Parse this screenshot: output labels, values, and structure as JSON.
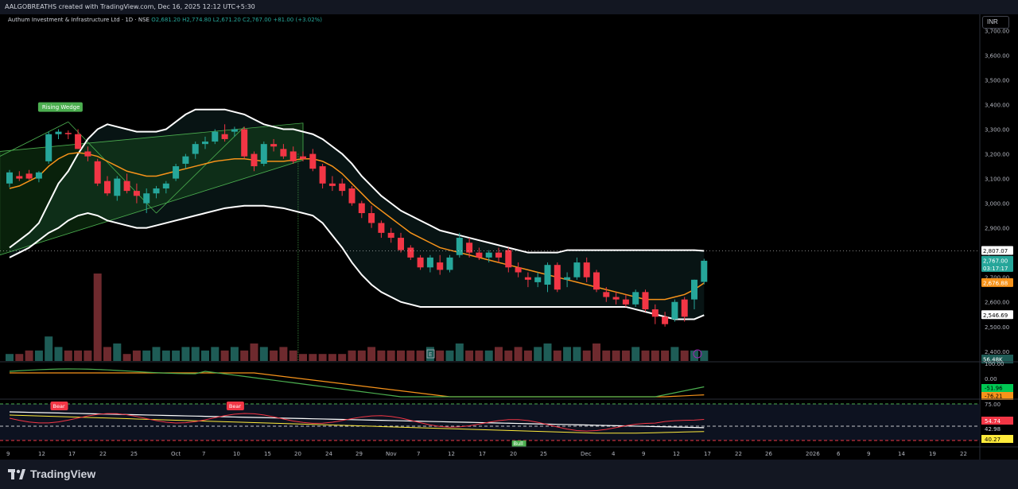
{
  "header": {
    "credit": "AALGOBREATHS created with TradingView.com, Dec 16, 2025 12:12 UTC+5:30",
    "symbol": "Authum Investment & Infrastructure Ltd · 1D · NSE",
    "ohlc": "O2,681.20 H2,774.80 L2,671.20 C2,767.00 +81.00 (+3.02%)",
    "currency": "INR"
  },
  "footer": {
    "brand": "TradingView"
  },
  "colors": {
    "bg": "#000000",
    "up": "#26a69a",
    "down": "#f23645",
    "band": "#ffffff",
    "mid": "#f7931a",
    "wedge": "#4caf50",
    "volUp": "#1e5c56",
    "volDown": "#6e2a2e"
  },
  "chart_data": [
    {
      "type": "candlestick",
      "title": "Authum Investment & Infrastructure Ltd · 1D · NSE",
      "ylim": [
        2380,
        3740
      ],
      "y_ticks": [
        "3,700.00",
        "3,600.00",
        "3,500.00",
        "3,400.00",
        "3,300.00",
        "3,200.00",
        "3,100.00",
        "3,000.00",
        "2,900.00",
        "2,800.00",
        "2,700.00",
        "2,600.00",
        "2,500.00",
        "2,400.00"
      ],
      "x_ticks": [
        "9",
        "12",
        "17",
        "22",
        "25",
        "Oct",
        "7",
        "10",
        "15",
        "20",
        "24",
        "29",
        "Nov",
        "7",
        "12",
        "17",
        "20",
        "25",
        "Dec",
        "4",
        "9",
        "12",
        "17",
        "22",
        "26",
        "2026",
        "6",
        "9",
        "14",
        "19",
        "22"
      ],
      "candles": [
        [
          3080,
          3135,
          3065,
          3125
        ],
        [
          3110,
          3130,
          3090,
          3100
        ],
        [
          3120,
          3135,
          3095,
          3100
        ],
        [
          3100,
          3130,
          3085,
          3125
        ],
        [
          3170,
          3290,
          3160,
          3280
        ],
        [
          3280,
          3300,
          3260,
          3290
        ],
        [
          3285,
          3295,
          3260,
          3280
        ],
        [
          3280,
          3300,
          3220,
          3220
        ],
        [
          3210,
          3230,
          3170,
          3190
        ],
        [
          3170,
          3180,
          3070,
          3080
        ],
        [
          3090,
          3110,
          3030,
          3040
        ],
        [
          3030,
          3110,
          3010,
          3100
        ],
        [
          3090,
          3120,
          3040,
          3050
        ],
        [
          3050,
          3080,
          3000,
          3030
        ],
        [
          3000,
          3060,
          2960,
          3040
        ],
        [
          3040,
          3070,
          3020,
          3060
        ],
        [
          3060,
          3090,
          3040,
          3080
        ],
        [
          3100,
          3160,
          3090,
          3150
        ],
        [
          3160,
          3200,
          3140,
          3190
        ],
        [
          3200,
          3250,
          3180,
          3240
        ],
        [
          3240,
          3270,
          3220,
          3250
        ],
        [
          3250,
          3300,
          3240,
          3290
        ],
        [
          3280,
          3320,
          3250,
          3260
        ],
        [
          3290,
          3310,
          3270,
          3300
        ],
        [
          3300,
          3310,
          3180,
          3190
        ],
        [
          3200,
          3210,
          3130,
          3150
        ],
        [
          3160,
          3250,
          3150,
          3240
        ],
        [
          3240,
          3260,
          3210,
          3230
        ],
        [
          3220,
          3240,
          3180,
          3190
        ],
        [
          3210,
          3230,
          3160,
          3170
        ],
        [
          3190,
          3210,
          3170,
          3180
        ],
        [
          3200,
          3220,
          3130,
          3140
        ],
        [
          3150,
          3160,
          3060,
          3080
        ],
        [
          3080,
          3110,
          3050,
          3070
        ],
        [
          3080,
          3100,
          3030,
          3050
        ],
        [
          3060,
          3070,
          2990,
          3000
        ],
        [
          3000,
          3010,
          2940,
          2960
        ],
        [
          2960,
          2990,
          2900,
          2920
        ],
        [
          2920,
          2930,
          2860,
          2880
        ],
        [
          2880,
          2900,
          2840,
          2860
        ],
        [
          2860,
          2880,
          2800,
          2810
        ],
        [
          2820,
          2830,
          2770,
          2780
        ],
        [
          2780,
          2790,
          2730,
          2740
        ],
        [
          2740,
          2790,
          2720,
          2780
        ],
        [
          2760,
          2790,
          2710,
          2730
        ],
        [
          2730,
          2790,
          2720,
          2780
        ],
        [
          2790,
          2880,
          2780,
          2860
        ],
        [
          2840,
          2860,
          2780,
          2800
        ],
        [
          2800,
          2820,
          2770,
          2780
        ],
        [
          2780,
          2810,
          2760,
          2800
        ],
        [
          2800,
          2820,
          2760,
          2780
        ],
        [
          2810,
          2820,
          2720,
          2740
        ],
        [
          2740,
          2760,
          2700,
          2720
        ],
        [
          2700,
          2720,
          2660,
          2690
        ],
        [
          2680,
          2720,
          2660,
          2700
        ],
        [
          2670,
          2760,
          2640,
          2750
        ],
        [
          2750,
          2760,
          2640,
          2650
        ],
        [
          2690,
          2720,
          2660,
          2700
        ],
        [
          2700,
          2780,
          2690,
          2760
        ],
        [
          2760,
          2780,
          2680,
          2700
        ],
        [
          2720,
          2730,
          2640,
          2650
        ],
        [
          2640,
          2660,
          2600,
          2620
        ],
        [
          2620,
          2640,
          2590,
          2610
        ],
        [
          2610,
          2630,
          2580,
          2590
        ],
        [
          2590,
          2650,
          2580,
          2640
        ],
        [
          2640,
          2650,
          2560,
          2570
        ],
        [
          2570,
          2590,
          2510,
          2540
        ],
        [
          2540,
          2560,
          2500,
          2510
        ],
        [
          2530,
          2610,
          2520,
          2600
        ],
        [
          2610,
          2620,
          2520,
          2540
        ],
        [
          2610,
          2690,
          2570,
          2690
        ],
        [
          2681.2,
          2774.8,
          2671.2,
          2767.0
        ]
      ],
      "bollinger": {
        "last_upper": 2807.07,
        "last_basis": 2676.88,
        "last_lower": 2546.69,
        "upper": [
          2820,
          2850,
          2880,
          2920,
          3000,
          3080,
          3130,
          3200,
          3260,
          3300,
          3320,
          3310,
          3300,
          3290,
          3290,
          3290,
          3300,
          3330,
          3360,
          3380,
          3380,
          3380,
          3380,
          3370,
          3360,
          3340,
          3320,
          3310,
          3300,
          3300,
          3290,
          3280,
          3260,
          3230,
          3200,
          3160,
          3110,
          3070,
          3030,
          3000,
          2970,
          2950,
          2930,
          2910,
          2890,
          2880,
          2870,
          2860,
          2850,
          2840,
          2830,
          2820,
          2810,
          2800,
          2800,
          2800,
          2800,
          2810,
          2810,
          2810,
          2810,
          2810,
          2810,
          2810,
          2810,
          2810,
          2810,
          2810,
          2810,
          2810,
          2810,
          2807.07
        ],
        "basis": [
          3060,
          3070,
          3090,
          3110,
          3150,
          3180,
          3200,
          3205,
          3200,
          3190,
          3170,
          3150,
          3130,
          3120,
          3110,
          3110,
          3120,
          3130,
          3140,
          3150,
          3160,
          3170,
          3175,
          3180,
          3180,
          3175,
          3170,
          3170,
          3170,
          3175,
          3180,
          3180,
          3170,
          3150,
          3120,
          3080,
          3040,
          3000,
          2970,
          2940,
          2910,
          2880,
          2860,
          2840,
          2820,
          2810,
          2800,
          2790,
          2780,
          2770,
          2760,
          2750,
          2740,
          2730,
          2720,
          2710,
          2700,
          2690,
          2680,
          2670,
          2660,
          2650,
          2640,
          2630,
          2620,
          2610,
          2610,
          2610,
          2620,
          2630,
          2650,
          2676.88
        ],
        "lower": [
          2780,
          2800,
          2820,
          2850,
          2880,
          2900,
          2930,
          2950,
          2960,
          2950,
          2930,
          2920,
          2910,
          2900,
          2900,
          2910,
          2920,
          2930,
          2940,
          2950,
          2960,
          2970,
          2980,
          2985,
          2990,
          2990,
          2990,
          2985,
          2980,
          2970,
          2960,
          2950,
          2920,
          2870,
          2820,
          2760,
          2710,
          2670,
          2640,
          2620,
          2600,
          2590,
          2580,
          2580,
          2580,
          2580,
          2580,
          2580,
          2580,
          2580,
          2580,
          2580,
          2580,
          2580,
          2580,
          2580,
          2580,
          2580,
          2580,
          2580,
          2580,
          2580,
          2580,
          2580,
          2570,
          2560,
          2550,
          2540,
          2530,
          2530,
          2530,
          2546.69
        ]
      },
      "volume_last": "56.48K",
      "volumes": [
        2,
        2,
        3,
        3,
        7,
        4,
        3,
        3,
        3,
        25,
        4,
        5,
        2,
        3,
        3,
        4,
        3,
        3,
        4,
        4,
        3,
        4,
        3,
        4,
        3,
        5,
        4,
        3,
        4,
        3,
        2,
        2,
        2,
        2,
        2,
        3,
        3,
        4,
        3,
        3,
        3,
        3,
        3,
        4,
        3,
        3,
        5,
        3,
        3,
        3,
        4,
        3,
        4,
        3,
        4,
        5,
        3,
        4,
        4,
        3,
        5,
        3,
        3,
        3,
        4,
        3,
        3,
        3,
        4,
        3,
        3,
        3
      ],
      "annotations": [
        "Rising Wedge",
        "E"
      ],
      "price_labels": {
        "upper": "2,807.07",
        "last": "2,767.00",
        "countdown": "03:17:17",
        "basis": "2,676.88",
        "lower": "2,546.69"
      }
    },
    {
      "type": "line",
      "name": "oscillator-1",
      "ticks": [
        "100.00",
        "0.00"
      ],
      "labels": [
        "-51.96",
        "-76.21"
      ]
    },
    {
      "type": "line",
      "name": "oscillator-2",
      "ticks": [
        "75.00"
      ],
      "labels": [
        "54.74",
        "42.98",
        "40.27"
      ],
      "annotations": [
        "Bear",
        "Bear",
        "Bull"
      ]
    }
  ]
}
